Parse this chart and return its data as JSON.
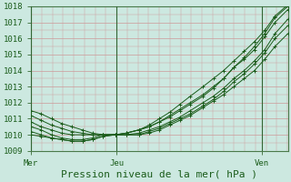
{
  "xlabel": "Pression niveau de la mer( hPa )",
  "xtick_labels": [
    "Mer",
    "Jeu",
    "Ven"
  ],
  "xtick_positions": [
    0.0,
    0.333,
    0.9
  ],
  "ytick_labels": [
    "1009",
    "1010",
    "1011",
    "1012",
    "1013",
    "1014",
    "1015",
    "1016",
    "1017",
    "1018"
  ],
  "ytick_values": [
    1009,
    1010,
    1011,
    1012,
    1013,
    1014,
    1015,
    1016,
    1017,
    1018
  ],
  "ylim": [
    1009,
    1018
  ],
  "xlim": [
    0.0,
    1.0
  ],
  "background_color": "#cce8e0",
  "grid_major_color": "#cc9999",
  "grid_minor_color": "#ddbbbb",
  "line_color": "#1a5c1a",
  "marker": "+",
  "markersize": 3,
  "linewidth": 0.7,
  "series_x": [
    [
      0.0,
      0.04,
      0.08,
      0.12,
      0.16,
      0.2,
      0.24,
      0.28,
      0.33,
      0.37,
      0.42,
      0.46,
      0.5,
      0.54,
      0.58,
      0.62,
      0.67,
      0.71,
      0.75,
      0.79,
      0.83,
      0.87,
      0.91,
      0.95,
      1.0
    ],
    [
      0.0,
      0.04,
      0.08,
      0.12,
      0.16,
      0.2,
      0.24,
      0.28,
      0.33,
      0.37,
      0.42,
      0.46,
      0.5,
      0.54,
      0.58,
      0.62,
      0.67,
      0.71,
      0.75,
      0.79,
      0.83,
      0.87,
      0.91,
      0.95,
      1.0
    ],
    [
      0.0,
      0.04,
      0.08,
      0.12,
      0.16,
      0.2,
      0.24,
      0.28,
      0.33,
      0.37,
      0.42,
      0.46,
      0.5,
      0.54,
      0.58,
      0.62,
      0.67,
      0.71,
      0.75,
      0.79,
      0.83,
      0.87,
      0.91,
      0.95,
      1.0
    ],
    [
      0.0,
      0.04,
      0.08,
      0.12,
      0.16,
      0.2,
      0.24,
      0.28,
      0.33,
      0.37,
      0.42,
      0.46,
      0.5,
      0.54,
      0.58,
      0.62,
      0.67,
      0.71,
      0.75,
      0.79,
      0.83,
      0.87,
      0.91,
      0.95,
      1.0
    ],
    [
      0.0,
      0.04,
      0.08,
      0.12,
      0.16,
      0.2,
      0.24,
      0.28,
      0.33,
      0.37,
      0.42,
      0.46,
      0.5,
      0.54,
      0.58,
      0.62,
      0.67,
      0.71,
      0.75,
      0.79,
      0.83,
      0.87,
      0.91,
      0.95,
      1.0
    ],
    [
      0.0,
      0.04,
      0.08,
      0.12,
      0.16,
      0.2,
      0.24,
      0.28,
      0.33,
      0.37,
      0.42,
      0.46,
      0.5,
      0.54,
      0.58,
      0.62,
      0.67,
      0.71,
      0.75,
      0.79,
      0.83,
      0.87,
      0.91,
      0.95,
      1.0
    ]
  ],
  "series_y": [
    [
      1011.5,
      1011.3,
      1011.0,
      1010.7,
      1010.5,
      1010.3,
      1010.1,
      1010.0,
      1010.0,
      1010.1,
      1010.3,
      1010.5,
      1010.8,
      1011.1,
      1011.5,
      1011.9,
      1012.4,
      1012.9,
      1013.5,
      1014.2,
      1014.8,
      1015.5,
      1016.3,
      1017.3,
      1018.0
    ],
    [
      1010.5,
      1010.3,
      1010.0,
      1009.8,
      1009.7,
      1009.7,
      1009.8,
      1010.0,
      1010.0,
      1010.0,
      1010.1,
      1010.3,
      1010.5,
      1010.8,
      1011.1,
      1011.5,
      1012.0,
      1012.4,
      1012.9,
      1013.5,
      1014.0,
      1014.6,
      1015.3,
      1016.3,
      1017.2
    ],
    [
      1010.2,
      1010.0,
      1009.8,
      1009.7,
      1009.6,
      1009.6,
      1009.7,
      1009.9,
      1010.0,
      1010.0,
      1010.0,
      1010.2,
      1010.4,
      1010.7,
      1011.0,
      1011.3,
      1011.8,
      1012.2,
      1012.7,
      1013.3,
      1013.8,
      1014.4,
      1015.1,
      1016.0,
      1016.8
    ],
    [
      1010.8,
      1010.5,
      1010.3,
      1010.1,
      1010.0,
      1010.0,
      1010.0,
      1010.0,
      1010.0,
      1010.1,
      1010.3,
      1010.5,
      1010.8,
      1011.2,
      1011.6,
      1012.0,
      1012.5,
      1013.0,
      1013.5,
      1014.2,
      1014.7,
      1015.3,
      1016.1,
      1017.0,
      1017.8
    ],
    [
      1011.2,
      1010.9,
      1010.6,
      1010.4,
      1010.2,
      1010.1,
      1010.0,
      1010.0,
      1010.0,
      1010.1,
      1010.3,
      1010.6,
      1011.0,
      1011.4,
      1011.9,
      1012.4,
      1013.0,
      1013.5,
      1014.0,
      1014.6,
      1015.2,
      1015.8,
      1016.5,
      1017.4,
      1018.1
    ],
    [
      1010.0,
      1009.9,
      1009.8,
      1009.7,
      1009.6,
      1009.6,
      1009.7,
      1009.9,
      1010.0,
      1010.0,
      1010.0,
      1010.1,
      1010.3,
      1010.6,
      1010.9,
      1011.2,
      1011.7,
      1012.1,
      1012.5,
      1013.0,
      1013.5,
      1014.0,
      1014.7,
      1015.5,
      1016.3
    ]
  ],
  "vline_color": "#336633",
  "vline_positions": [
    0.0,
    0.333,
    0.9
  ],
  "spine_color": "#4a7a4a",
  "tick_label_fontsize": 6.5,
  "xlabel_fontsize": 8
}
